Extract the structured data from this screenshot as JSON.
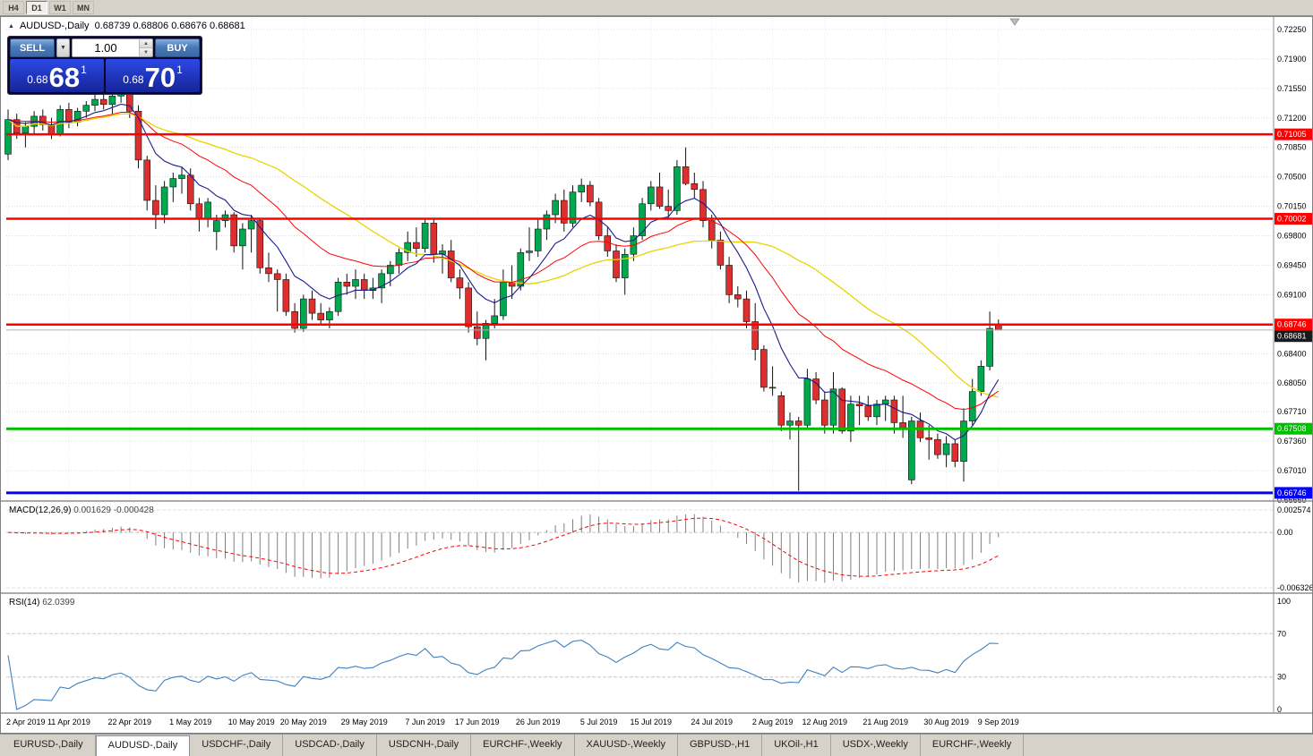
{
  "toolbar": {
    "periods": [
      {
        "label": "H4",
        "active": false
      },
      {
        "label": "D1",
        "active": true
      },
      {
        "label": "W1",
        "active": false
      },
      {
        "label": "MN",
        "active": false
      }
    ]
  },
  "title": {
    "symbol_period": "AUDUSD-,Daily",
    "ohlc": "0.68739 0.68806 0.68676 0.68681"
  },
  "icons": {
    "collapse_triangle": "▲",
    "chevron_down": "▼",
    "spinner_up": "▲",
    "spinner_down": "▼"
  },
  "one_click": {
    "sell_label": "SELL",
    "buy_label": "BUY",
    "volume": "1.00",
    "bid_small": "0.68",
    "bid_big": "68",
    "bid_sup": "1",
    "ask_small": "0.68",
    "ask_big": "70",
    "ask_sup": "1"
  },
  "price_axis": {
    "ticks": [
      "0.72250",
      "0.71900",
      "0.71550",
      "0.71200",
      "0.70850",
      "0.70500",
      "0.70150",
      "0.69800",
      "0.69450",
      "0.69100",
      "0.68750",
      "0.68400",
      "0.68050",
      "0.67710",
      "0.67360",
      "0.67010",
      "0.66660"
    ]
  },
  "levels": [
    {
      "value": "0.71005",
      "color": "#FF0000",
      "width": 2.5
    },
    {
      "value": "0.70002",
      "color": "#FF0000",
      "width": 2.5
    },
    {
      "value": "0.68746",
      "color": "#FF0000",
      "width": 2.5
    },
    {
      "value": "0.67508",
      "color": "#00BE00",
      "width": 3
    },
    {
      "value": "0.66746",
      "color": "#0000FF",
      "width": 3
    }
  ],
  "current_price": {
    "value": "0.68681"
  },
  "macd": {
    "label": "MACD(12,26,9)",
    "value": "0.001629",
    "signal": "-0.000428",
    "axis": [
      "0.002574",
      "0.00",
      "-0.006326"
    ]
  },
  "rsi": {
    "label": "RSI(14)",
    "value": "62.0399",
    "axis": [
      "100",
      "70",
      "30",
      "0"
    ],
    "level_lines": [
      70,
      30
    ]
  },
  "tabs": [
    {
      "label": "EURUSD-,Daily",
      "active": false
    },
    {
      "label": "AUDUSD-,Daily",
      "active": true
    },
    {
      "label": "USDCHF-,Daily",
      "active": false
    },
    {
      "label": "USDCAD-,Daily",
      "active": false
    },
    {
      "label": "USDCNH-,Daily",
      "active": false
    },
    {
      "label": "EURCHF-,Weekly",
      "active": false
    },
    {
      "label": "XAUUSD-,Weekly",
      "active": false
    },
    {
      "label": "GBPUSD-,H1",
      "active": false
    },
    {
      "label": "UKOil-,H1",
      "active": false
    },
    {
      "label": "USDX-,Weekly",
      "active": false
    },
    {
      "label": "EURCHF-,Weekly",
      "active": false
    }
  ],
  "colors": {
    "bull": "#00A84F",
    "bear": "#DF2E2E",
    "wick": "#111111",
    "ma_fast": "#1A1A8C",
    "ma_mid": "#FF0000",
    "ma_slow": "#E8D400",
    "macd_hist": "#808080",
    "macd_signal": "#FF0000",
    "rsi_line": "#4080BF",
    "grid": "#DCDCDC"
  },
  "chart_data": {
    "type": "candlestick",
    "symbol": "AUDUSD-",
    "period": "Daily",
    "last_ohlc": [
      0.68739,
      0.68806,
      0.68676,
      0.68681
    ],
    "moving_averages": [
      {
        "name": "fast",
        "type": "ema",
        "period": 8,
        "color": "#1A1A8C"
      },
      {
        "name": "mid",
        "type": "ema",
        "period": 21,
        "color": "#FF0000"
      },
      {
        "name": "slow",
        "type": "sma",
        "period": 32,
        "color": "#E8D400"
      }
    ],
    "x_labels": [
      {
        "label": "2 Apr 2019",
        "i": 0
      },
      {
        "label": "11 Apr 2019",
        "i": 7
      },
      {
        "label": "22 Apr 2019",
        "i": 14
      },
      {
        "label": "1 May 2019",
        "i": 21
      },
      {
        "label": "10 May 2019",
        "i": 28
      },
      {
        "label": "20 May 2019",
        "i": 34
      },
      {
        "label": "29 May 2019",
        "i": 41
      },
      {
        "label": "7 Jun 2019",
        "i": 48
      },
      {
        "label": "17 Jun 2019",
        "i": 54
      },
      {
        "label": "26 Jun 2019",
        "i": 61
      },
      {
        "label": "5 Jul 2019",
        "i": 68
      },
      {
        "label": "15 Jul 2019",
        "i": 74
      },
      {
        "label": "24 Jul 2019",
        "i": 81
      },
      {
        "label": "2 Aug 2019",
        "i": 88
      },
      {
        "label": "12 Aug 2019",
        "i": 94
      },
      {
        "label": "21 Aug 2019",
        "i": 101
      },
      {
        "label": "30 Aug 2019",
        "i": 108
      },
      {
        "label": "9 Sep 2019",
        "i": 114
      }
    ],
    "candles": [
      [
        0.7077,
        0.713,
        0.707,
        0.7118
      ],
      [
        0.7118,
        0.7125,
        0.7095,
        0.7102
      ],
      [
        0.7102,
        0.7115,
        0.7085,
        0.711
      ],
      [
        0.711,
        0.7128,
        0.71,
        0.7122
      ],
      [
        0.7122,
        0.713,
        0.7105,
        0.7112
      ],
      [
        0.7112,
        0.712,
        0.7095,
        0.71
      ],
      [
        0.71,
        0.7135,
        0.7098,
        0.713
      ],
      [
        0.713,
        0.7138,
        0.7108,
        0.7115
      ],
      [
        0.7115,
        0.7132,
        0.711,
        0.7128
      ],
      [
        0.7128,
        0.714,
        0.712,
        0.7135
      ],
      [
        0.7135,
        0.7148,
        0.7128,
        0.7142
      ],
      [
        0.7142,
        0.715,
        0.713,
        0.7136
      ],
      [
        0.7136,
        0.7152,
        0.7125,
        0.7146
      ],
      [
        0.7146,
        0.7155,
        0.7138,
        0.715
      ],
      [
        0.715,
        0.7153,
        0.712,
        0.7128
      ],
      [
        0.7128,
        0.7135,
        0.706,
        0.707
      ],
      [
        0.707,
        0.7075,
        0.701,
        0.7022
      ],
      [
        0.7022,
        0.704,
        0.6988,
        0.7005
      ],
      [
        0.7005,
        0.7045,
        0.6995,
        0.7038
      ],
      [
        0.7038,
        0.7055,
        0.702,
        0.7048
      ],
      [
        0.7048,
        0.7062,
        0.703,
        0.7052
      ],
      [
        0.7052,
        0.706,
        0.701,
        0.7018
      ],
      [
        0.7018,
        0.7025,
        0.6985,
        0.7
      ],
      [
        0.7,
        0.7025,
        0.699,
        0.702
      ],
      [
        0.6985,
        0.7005,
        0.6963,
        0.6998
      ],
      [
        0.6998,
        0.701,
        0.699,
        0.7005
      ],
      [
        0.7005,
        0.7008,
        0.696,
        0.6968
      ],
      [
        0.6968,
        0.6995,
        0.694,
        0.6988
      ],
      [
        0.6988,
        0.7005,
        0.696,
        0.6998
      ],
      [
        0.6998,
        0.7,
        0.6935,
        0.6942
      ],
      [
        0.6942,
        0.696,
        0.6925,
        0.6935
      ],
      [
        0.6935,
        0.694,
        0.689,
        0.6928
      ],
      [
        0.6928,
        0.6935,
        0.6885,
        0.689
      ],
      [
        0.689,
        0.69,
        0.6865,
        0.687
      ],
      [
        0.687,
        0.691,
        0.6866,
        0.6905
      ],
      [
        0.6905,
        0.6915,
        0.688,
        0.6888
      ],
      [
        0.6888,
        0.69,
        0.6875,
        0.688
      ],
      [
        0.688,
        0.6895,
        0.687,
        0.689
      ],
      [
        0.689,
        0.693,
        0.6885,
        0.6925
      ],
      [
        0.6925,
        0.6935,
        0.691,
        0.692
      ],
      [
        0.692,
        0.694,
        0.6905,
        0.6928
      ],
      [
        0.6928,
        0.6935,
        0.6905,
        0.6915
      ],
      [
        0.6915,
        0.693,
        0.6905,
        0.6918
      ],
      [
        0.6918,
        0.694,
        0.69,
        0.6935
      ],
      [
        0.6935,
        0.695,
        0.692,
        0.6945
      ],
      [
        0.6945,
        0.6965,
        0.6935,
        0.696
      ],
      [
        0.696,
        0.6985,
        0.695,
        0.6972
      ],
      [
        0.6972,
        0.699,
        0.6955,
        0.6965
      ],
      [
        0.6965,
        0.7,
        0.696,
        0.6995
      ],
      [
        0.6995,
        0.7,
        0.6948,
        0.6958
      ],
      [
        0.6958,
        0.697,
        0.6935,
        0.6962
      ],
      [
        0.6962,
        0.6975,
        0.6925,
        0.693
      ],
      [
        0.693,
        0.694,
        0.6905,
        0.6918
      ],
      [
        0.6918,
        0.6925,
        0.6865,
        0.6872
      ],
      [
        0.6872,
        0.689,
        0.685,
        0.6858
      ],
      [
        0.6858,
        0.688,
        0.6832,
        0.6876
      ],
      [
        0.6876,
        0.6905,
        0.687,
        0.6885
      ],
      [
        0.6885,
        0.694,
        0.688,
        0.6925
      ],
      [
        0.6925,
        0.6945,
        0.6905,
        0.692
      ],
      [
        0.692,
        0.6965,
        0.6915,
        0.696
      ],
      [
        0.696,
        0.699,
        0.695,
        0.6962
      ],
      [
        0.6962,
        0.7,
        0.6955,
        0.6988
      ],
      [
        0.6988,
        0.701,
        0.6975,
        0.7005
      ],
      [
        0.7005,
        0.703,
        0.6995,
        0.7022
      ],
      [
        0.7022,
        0.7035,
        0.6985,
        0.6995
      ],
      [
        0.6995,
        0.704,
        0.699,
        0.7032
      ],
      [
        0.7032,
        0.7048,
        0.702,
        0.704
      ],
      [
        0.704,
        0.7045,
        0.7015,
        0.702
      ],
      [
        0.702,
        0.7025,
        0.6975,
        0.698
      ],
      [
        0.698,
        0.699,
        0.6955,
        0.6962
      ],
      [
        0.6962,
        0.697,
        0.6925,
        0.693
      ],
      [
        0.693,
        0.6965,
        0.691,
        0.6958
      ],
      [
        0.6958,
        0.699,
        0.695,
        0.698
      ],
      [
        0.698,
        0.7025,
        0.6975,
        0.7018
      ],
      [
        0.7018,
        0.7045,
        0.701,
        0.7038
      ],
      [
        0.7038,
        0.7055,
        0.7012,
        0.7015
      ],
      [
        0.7015,
        0.7035,
        0.7,
        0.701
      ],
      [
        0.701,
        0.707,
        0.7005,
        0.7062
      ],
      [
        0.7062,
        0.7085,
        0.704,
        0.7042
      ],
      [
        0.7042,
        0.7055,
        0.7025,
        0.7035
      ],
      [
        0.7035,
        0.7045,
        0.699,
        0.6998
      ],
      [
        0.6998,
        0.7005,
        0.6965,
        0.6975
      ],
      [
        0.6975,
        0.6985,
        0.694,
        0.6945
      ],
      [
        0.6945,
        0.6955,
        0.69,
        0.691
      ],
      [
        0.691,
        0.692,
        0.6895,
        0.6905
      ],
      [
        0.6905,
        0.6915,
        0.687,
        0.6878
      ],
      [
        0.6878,
        0.69,
        0.6832,
        0.6845
      ],
      [
        0.6845,
        0.685,
        0.6795,
        0.68
      ],
      [
        0.68,
        0.6825,
        0.679,
        0.68
      ],
      [
        0.679,
        0.6795,
        0.6748,
        0.6755
      ],
      [
        0.6755,
        0.677,
        0.6738,
        0.676
      ],
      [
        0.676,
        0.6765,
        0.6677,
        0.6755
      ],
      [
        0.6755,
        0.6822,
        0.675,
        0.681
      ],
      [
        0.681,
        0.6818,
        0.678,
        0.6785
      ],
      [
        0.6785,
        0.6795,
        0.6745,
        0.6755
      ],
      [
        0.6755,
        0.6818,
        0.6745,
        0.6798
      ],
      [
        0.6798,
        0.68,
        0.6745,
        0.6748
      ],
      [
        0.6748,
        0.679,
        0.6735,
        0.678
      ],
      [
        0.678,
        0.679,
        0.6755,
        0.6778
      ],
      [
        0.6778,
        0.679,
        0.676,
        0.6765
      ],
      [
        0.6765,
        0.6785,
        0.6755,
        0.678
      ],
      [
        0.678,
        0.679,
        0.676,
        0.6785
      ],
      [
        0.6785,
        0.679,
        0.6745,
        0.6758
      ],
      [
        0.6758,
        0.679,
        0.674,
        0.6752
      ],
      [
        0.669,
        0.6765,
        0.6685,
        0.676
      ],
      [
        0.676,
        0.677,
        0.6735,
        0.674
      ],
      [
        0.674,
        0.6755,
        0.6714,
        0.6738
      ],
      [
        0.6738,
        0.6745,
        0.6715,
        0.672
      ],
      [
        0.672,
        0.6742,
        0.6705,
        0.6733
      ],
      [
        0.6733,
        0.6738,
        0.6705,
        0.6712
      ],
      [
        0.6712,
        0.6775,
        0.6688,
        0.676
      ],
      [
        0.676,
        0.681,
        0.6755,
        0.6795
      ],
      [
        0.6795,
        0.6832,
        0.679,
        0.6825
      ],
      [
        0.6825,
        0.689,
        0.682,
        0.687
      ],
      [
        0.68739,
        0.68806,
        0.68676,
        0.68681
      ]
    ]
  }
}
